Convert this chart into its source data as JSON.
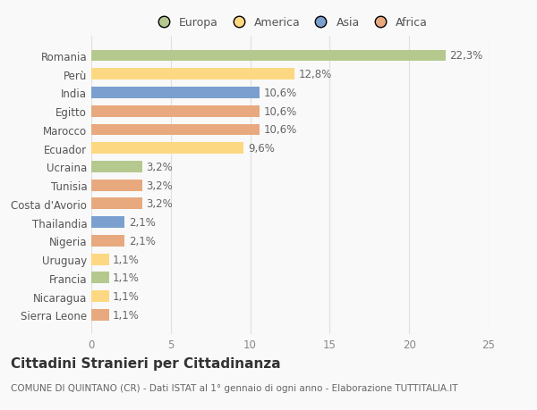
{
  "categories": [
    "Romania",
    "Perù",
    "India",
    "Egitto",
    "Marocco",
    "Ecuador",
    "Ucraina",
    "Tunisia",
    "Costa d'Avorio",
    "Thailandia",
    "Nigeria",
    "Uruguay",
    "Francia",
    "Nicaragua",
    "Sierra Leone"
  ],
  "values": [
    22.3,
    12.8,
    10.6,
    10.6,
    10.6,
    9.6,
    3.2,
    3.2,
    3.2,
    2.1,
    2.1,
    1.1,
    1.1,
    1.1,
    1.1
  ],
  "labels": [
    "22,3%",
    "12,8%",
    "10,6%",
    "10,6%",
    "10,6%",
    "9,6%",
    "3,2%",
    "3,2%",
    "3,2%",
    "2,1%",
    "2,1%",
    "1,1%",
    "1,1%",
    "1,1%",
    "1,1%"
  ],
  "colors": [
    "#b5c98e",
    "#fdd882",
    "#7b9fcf",
    "#e8a97e",
    "#e8a97e",
    "#fdd882",
    "#b5c98e",
    "#e8a97e",
    "#e8a97e",
    "#7b9fcf",
    "#e8a97e",
    "#fdd882",
    "#b5c98e",
    "#fdd882",
    "#e8a97e"
  ],
  "legend_labels": [
    "Europa",
    "America",
    "Asia",
    "Africa"
  ],
  "legend_colors": [
    "#b5c98e",
    "#fdd882",
    "#7b9fcf",
    "#e8a97e"
  ],
  "title": "Cittadini Stranieri per Cittadinanza",
  "subtitle": "COMUNE DI QUINTANO (CR) - Dati ISTAT al 1° gennaio di ogni anno - Elaborazione TUTTITALIA.IT",
  "xlim": [
    0,
    25
  ],
  "xticks": [
    0,
    5,
    10,
    15,
    20,
    25
  ],
  "background_color": "#f9f9f9",
  "grid_color": "#e0e0e0",
  "label_fontsize": 8.5,
  "bar_label_fontsize": 8.5,
  "title_fontsize": 11,
  "subtitle_fontsize": 7.5
}
